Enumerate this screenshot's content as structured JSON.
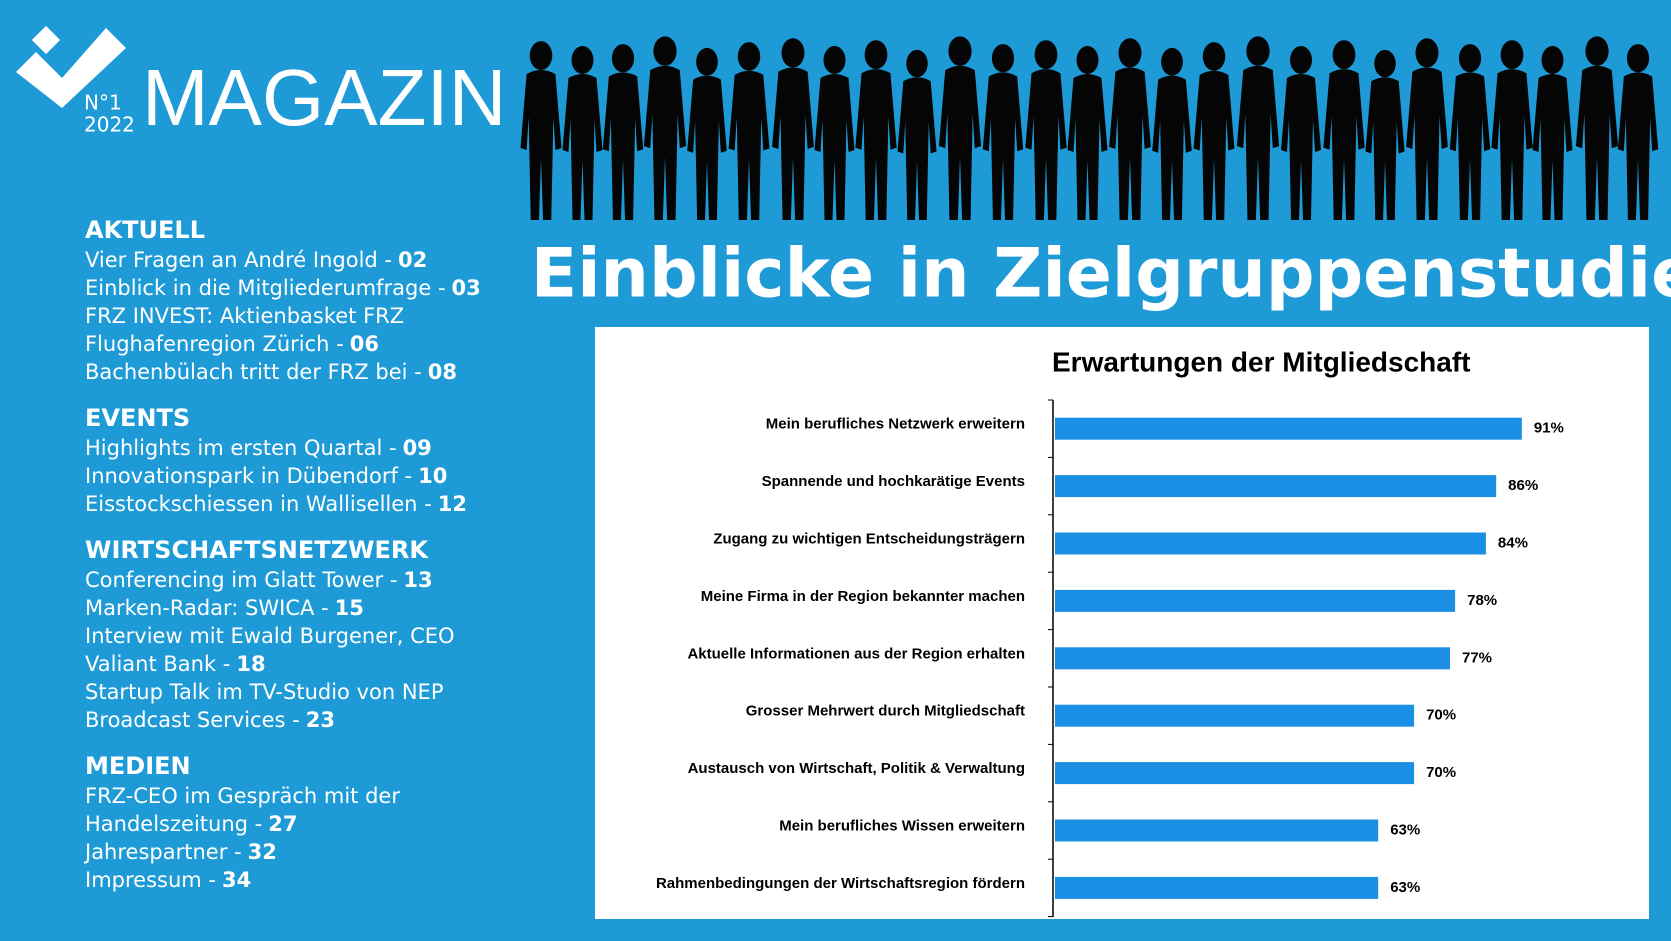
{
  "header": {
    "issue": "N°1",
    "year": "2022",
    "title": "MAGAZIN",
    "headline": "Einblicke in Zielgruppenstudie"
  },
  "toc": [
    {
      "heading": "AKTUELL",
      "lines": [
        {
          "text": "Vier  Fragen an André Ingold -",
          "page": "02"
        },
        {
          "text": "Einblick in die Mitgliederumfrage -",
          "page": "03"
        },
        {
          "text": "FRZ INVEST: Aktienbasket FRZ"
        },
        {
          "text": "Flughafenregion Zürich  -",
          "page": "06"
        },
        {
          "text": "Bachenbülach tritt der FRZ bei  -",
          "page": "08"
        }
      ]
    },
    {
      "heading": "EVENTS",
      "lines": [
        {
          "text": "Highlights im ersten Quartal -",
          "page": "09"
        },
        {
          "text": "Innovationspark in Dübendorf -",
          "page": "10"
        },
        {
          "text": "Eisstockschiessen in Wallisellen -",
          "page": "12"
        }
      ]
    },
    {
      "heading": "WIRTSCHAFTSNETZWERK",
      "lines": [
        {
          "text": "Conferencing im Glatt Tower -",
          "page": "13"
        },
        {
          "text": "Marken-Radar: SWICA -",
          "page": "15"
        },
        {
          "text": "Interview mit Ewald Burgener, CEO"
        },
        {
          "text": "Valiant Bank -",
          "page": "18"
        },
        {
          "text": "Startup Talk im TV-Studio von NEP"
        },
        {
          "text": "Broadcast Services -",
          "page": "23"
        }
      ]
    },
    {
      "heading": "MEDIEN",
      "lines": [
        {
          "text": "FRZ-CEO im Gespräch mit der"
        },
        {
          "text": "Handelszeitung -",
          "page": "27"
        },
        {
          "text": "Jahrespartner -",
          "page": "32"
        },
        {
          "text": "Impressum -",
          "page": "34"
        }
      ]
    }
  ],
  "chart_data": {
    "type": "bar",
    "orientation": "horizontal",
    "title": "Erwartungen der Mitgliedschaft",
    "categories": [
      "Mein berufliches Netzwerk erweitern",
      "Spannende und hochkarätige Events",
      "Zugang zu wichtigen Entscheidungsträgern",
      "Meine Firma in der Region bekannter machen",
      "Aktuelle Informationen aus der Region erhalten",
      "Grosser Mehrwert durch Mitgliedschaft",
      "Austausch von Wirtschaft, Politik & Verwaltung",
      "Mein berufliches Wissen erweitern",
      "Rahmenbedingungen der Wirtschaftsregion fördern"
    ],
    "values": [
      91,
      86,
      84,
      78,
      77,
      70,
      70,
      63,
      63
    ],
    "value_labels": [
      "91%",
      "86%",
      "84%",
      "78%",
      "77%",
      "70%",
      "70%",
      "63%",
      "63%"
    ],
    "color": "#1a8fe3",
    "xlim": [
      0,
      100
    ]
  }
}
